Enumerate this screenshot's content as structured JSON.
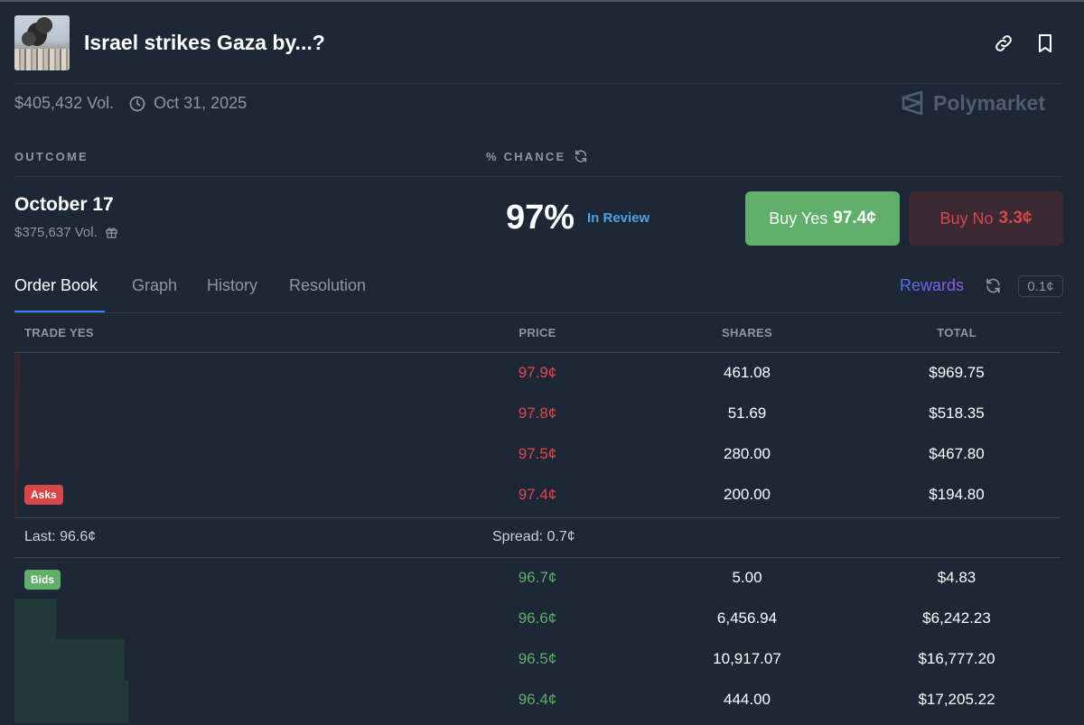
{
  "market": {
    "title": "Israel strikes Gaza by...?",
    "volume": "$405,432 Vol.",
    "end_date": "Oct 31, 2025",
    "brand": "Polymarket"
  },
  "columns": {
    "outcome": "OUTCOME",
    "chance": "% CHANCE"
  },
  "outcome": {
    "name": "October 17",
    "volume": "$375,637 Vol.",
    "chance": "97%",
    "status": "In Review",
    "buy_yes_label": "Buy Yes",
    "buy_yes_price": "97.4¢",
    "buy_no_label": "Buy No",
    "buy_no_price": "3.3¢"
  },
  "tabs": [
    {
      "label": "Order Book",
      "active": true
    },
    {
      "label": "Graph",
      "active": false
    },
    {
      "label": "History",
      "active": false
    },
    {
      "label": "Resolution",
      "active": false
    }
  ],
  "tab_tools": {
    "rewards": "Rewards",
    "tick_size": "0.1¢"
  },
  "order_book": {
    "headers": [
      "TRADE YES",
      "PRICE",
      "SHARES",
      "TOTAL"
    ],
    "asks_label": "Asks",
    "bids_label": "Bids",
    "asks": [
      {
        "price": "97.9¢",
        "shares": "461.08",
        "total": "$969.75"
      },
      {
        "price": "97.8¢",
        "shares": "51.69",
        "total": "$518.35"
      },
      {
        "price": "97.5¢",
        "shares": "280.00",
        "total": "$467.80"
      },
      {
        "price": "97.4¢",
        "shares": "200.00",
        "total": "$194.80"
      }
    ],
    "last": "Last: 96.6¢",
    "spread": "Spread: 0.7¢",
    "bids": [
      {
        "price": "96.7¢",
        "shares": "5.00",
        "total": "$4.83"
      },
      {
        "price": "96.6¢",
        "shares": "6,456.94",
        "total": "$6,242.23"
      },
      {
        "price": "96.5¢",
        "shares": "10,917.07",
        "total": "$16,777.20"
      },
      {
        "price": "96.4¢",
        "shares": "444.00",
        "total": "$17,205.22"
      }
    ]
  },
  "colors": {
    "background": "#1d2735",
    "ask": "#e0474c",
    "bid": "#5fae6a",
    "review": "#4da2e6"
  }
}
